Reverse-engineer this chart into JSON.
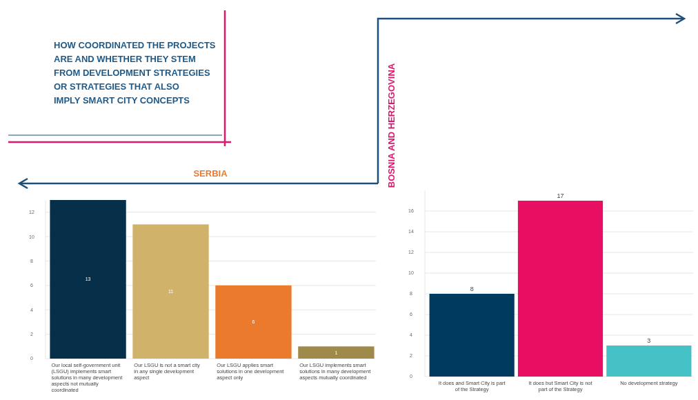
{
  "chart_data": [
    {
      "type": "other",
      "title": "HOW COORDINATED THE PROJECTS ARE AND WHETHER THEY STEM FROM DEVELOPMENT STRATEGIES OR STRATEGIES THAT ALSO IMPLY SMART CITY CONCEPTS"
    },
    {
      "type": "bar",
      "title": "SERBIA",
      "categories": [
        "Our local self-government unit (LSGU) implements smart solutions in many development aspects not mutually coordinated",
        "Our LSGU is not a smart city in any single development aspect",
        "Our LSGU applies smart solutions in one development aspect only",
        "Our LSGU implements smart solutions in many development aspects mutually coordinated"
      ],
      "values": [
        13,
        11,
        6,
        1
      ],
      "colors": [
        "#06304a",
        "#d1b26a",
        "#ec7a2d",
        "#a08a4b"
      ],
      "ylim": [
        0,
        13
      ],
      "yticks": [
        0,
        2,
        4,
        6,
        8,
        10,
        12
      ],
      "grid": "y",
      "data_labels": true
    },
    {
      "type": "bar",
      "title": "BOSNIA AND HERZEGOVINA",
      "categories": [
        "It does and Smart City is part of the Strategy",
        "It does but Smart City is not part of the Strategy",
        "No development strategy"
      ],
      "values": [
        8,
        17,
        3
      ],
      "colors": [
        "#003b5f",
        "#e80f63",
        "#45c2c5"
      ],
      "ylim": [
        0,
        18
      ],
      "yticks": [
        0,
        2,
        4,
        6,
        8,
        10,
        12,
        14,
        16
      ],
      "grid": "y",
      "data_labels": true
    }
  ]
}
